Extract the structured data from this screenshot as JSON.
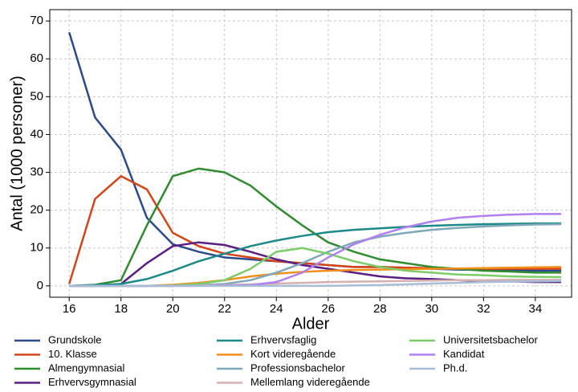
{
  "chart_data": {
    "type": "line",
    "x_label": "Alder",
    "y_label": "Antal (1000 personer)",
    "x": [
      16,
      17,
      18,
      19,
      20,
      21,
      22,
      23,
      24,
      25,
      26,
      27,
      28,
      29,
      30,
      31,
      32,
      33,
      34,
      35
    ],
    "xlim": [
      15.25,
      35.4
    ],
    "xticks": [
      16,
      18,
      20,
      22,
      24,
      26,
      28,
      30,
      32,
      34
    ],
    "ylim": [
      -3,
      73
    ],
    "yticks": [
      0,
      10,
      20,
      30,
      40,
      50,
      60,
      70
    ],
    "grid": true,
    "series": [
      {
        "name": "Grundskole",
        "color": "#2b4a8e",
        "values": [
          67,
          44.5,
          36,
          18,
          11,
          9,
          7.5,
          7,
          6.5,
          6,
          5.5,
          5,
          5,
          4.8,
          4.5,
          4.3,
          4.2,
          4.1,
          4,
          4
        ]
      },
      {
        "name": "10. Klasse",
        "color": "#d4461a",
        "values": [
          0.5,
          23,
          29,
          25.5,
          14,
          10.5,
          8.5,
          7.5,
          6.5,
          6,
          5.5,
          5,
          5,
          4.8,
          4.7,
          4.5,
          4.5,
          4.5,
          4.5,
          4.5
        ]
      },
      {
        "name": "Almengymnasial",
        "color": "#2e8b2e",
        "values": [
          0,
          0.3,
          1.5,
          16,
          29,
          31,
          30,
          26.5,
          21,
          16,
          11.5,
          9,
          7,
          6,
          5,
          4.5,
          4,
          3.8,
          3.5,
          3.5
        ]
      },
      {
        "name": "Erhvervsgymnasial",
        "color": "#5a1f82",
        "values": [
          0,
          0,
          0.5,
          6,
          10.5,
          11.5,
          10.8,
          9,
          7,
          5.5,
          4.5,
          3.5,
          2.5,
          2,
          1.8,
          1.5,
          1.3,
          1.2,
          1,
          1
        ]
      },
      {
        "name": "Erhvervsfaglig",
        "color": "#1d8a8a",
        "values": [
          0,
          0.2,
          0.5,
          1.8,
          4,
          6.5,
          8.5,
          10.5,
          12,
          13.2,
          14.2,
          14.8,
          15.2,
          15.6,
          15.9,
          16.1,
          16.3,
          16.4,
          16.5,
          16.5
        ]
      },
      {
        "name": "Kort videregående",
        "color": "#f28e1c",
        "values": [
          0,
          0,
          0,
          0,
          0.3,
          0.8,
          1.5,
          2.5,
          3.2,
          3.7,
          4,
          4.2,
          4.3,
          4.4,
          4.5,
          4.6,
          4.7,
          4.8,
          4.9,
          5
        ]
      },
      {
        "name": "Professionsbachelor",
        "color": "#7fa8b8",
        "values": [
          0,
          0,
          0,
          0,
          0,
          0.2,
          0.5,
          1.5,
          3.5,
          6,
          9,
          11.5,
          13,
          14,
          14.8,
          15.3,
          15.7,
          16,
          16.2,
          16.3
        ]
      },
      {
        "name": "Mellemlang videregående",
        "color": "#d4b0b0",
        "values": [
          0,
          0,
          0,
          0,
          0,
          0.1,
          0.2,
          0.4,
          0.6,
          0.8,
          1,
          1.1,
          1.2,
          1.3,
          1.4,
          1.5,
          1.5,
          1.6,
          1.6,
          1.6
        ]
      },
      {
        "name": "Universitetsbachelor",
        "color": "#7dcc6a",
        "values": [
          0,
          0,
          0,
          0,
          0.1,
          0.5,
          1.5,
          4.5,
          9,
          10,
          8.5,
          6.5,
          5,
          4,
          3.5,
          3,
          2.8,
          2.5,
          2.4,
          2.3
        ]
      },
      {
        "name": "Kandidat",
        "color": "#b07ff0",
        "values": [
          0,
          0,
          0,
          0,
          0,
          0,
          0.1,
          0.2,
          1,
          3.5,
          7.5,
          11,
          13.5,
          15.5,
          17,
          18,
          18.5,
          18.8,
          19,
          19
        ]
      },
      {
        "name": "Ph.d.",
        "color": "#a8bcd8",
        "values": [
          0,
          0,
          0,
          0,
          0,
          0,
          0,
          0,
          0,
          0,
          0,
          0.1,
          0.2,
          0.4,
          0.6,
          0.8,
          1,
          1.1,
          1.2,
          1.3
        ]
      }
    ]
  }
}
